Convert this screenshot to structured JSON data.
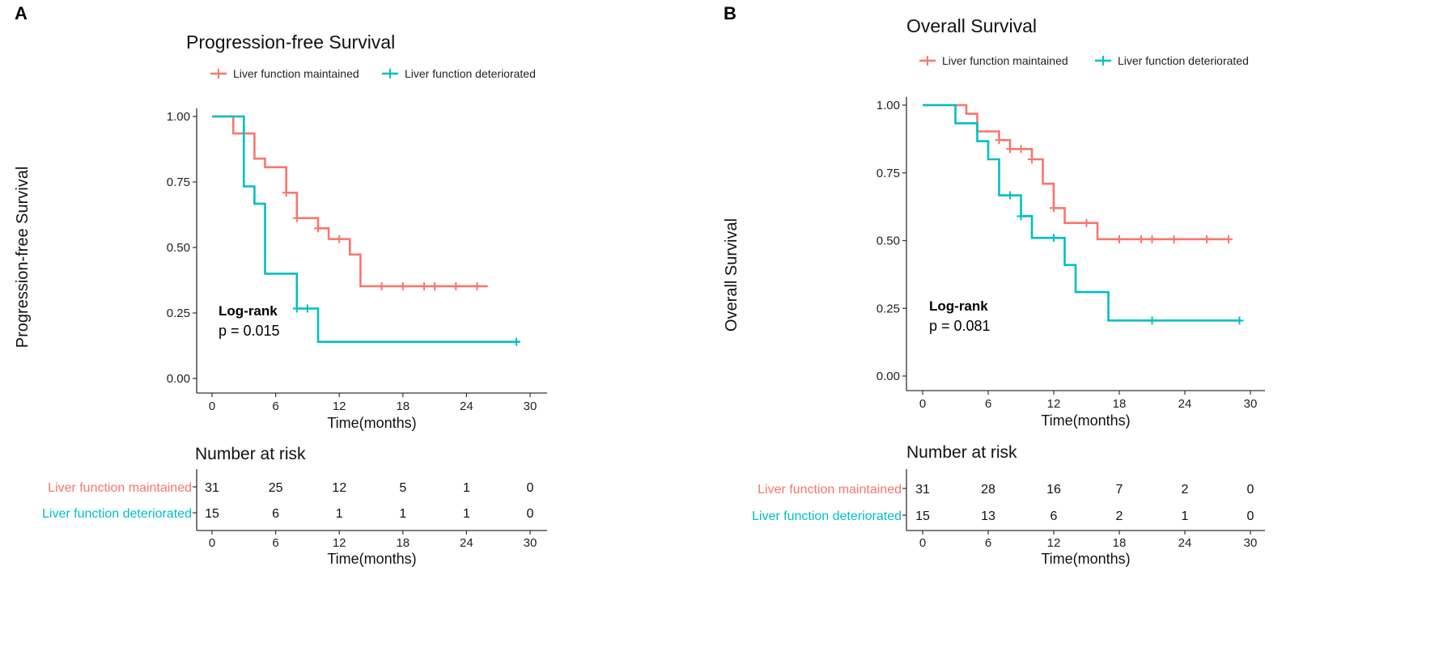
{
  "colors": {
    "maintained": "#F8766D",
    "deteriorated": "#00BFC4",
    "axis": "#333333",
    "text": "#111111"
  },
  "chart_data": [
    {
      "panel_label": "A",
      "type": "line",
      "subtype": "kaplan-meier",
      "title": "Progression-free Survival",
      "xlabel": "Time(months)",
      "ylabel": "Progression-free Survival",
      "xlim": [
        0,
        30
      ],
      "ylim": [
        0,
        1
      ],
      "xticks": [
        0,
        6,
        12,
        18,
        24,
        30
      ],
      "yticks": [
        "0.00",
        "0.25",
        "0.50",
        "0.75",
        "1.00"
      ],
      "grid": false,
      "legend_position": "top",
      "annotation": {
        "title": "Log-rank",
        "text": "p = 0.015"
      },
      "series": [
        {
          "name": "Liver function maintained",
          "color_key": "maintained",
          "steps": [
            [
              0,
              1.0
            ],
            [
              2,
              0.935
            ],
            [
              4,
              0.839
            ],
            [
              5,
              0.806
            ],
            [
              7,
              0.709
            ],
            [
              8,
              0.612
            ],
            [
              10,
              0.573
            ],
            [
              11,
              0.532
            ],
            [
              13,
              0.473
            ],
            [
              14,
              0.352
            ],
            [
              26,
              0.352
            ]
          ],
          "censored": [
            [
              7,
              0.709
            ],
            [
              8,
              0.612
            ],
            [
              10,
              0.573
            ],
            [
              12,
              0.532
            ],
            [
              16,
              0.352
            ],
            [
              18,
              0.352
            ],
            [
              20,
              0.352
            ],
            [
              21,
              0.352
            ],
            [
              23,
              0.352
            ],
            [
              25,
              0.352
            ]
          ]
        },
        {
          "name": "Liver function deteriorated",
          "color_key": "deteriorated",
          "steps": [
            [
              0,
              1.0
            ],
            [
              3,
              0.733
            ],
            [
              4,
              0.667
            ],
            [
              5,
              0.4
            ],
            [
              8,
              0.267
            ],
            [
              10,
              0.14
            ],
            [
              29,
              0.14
            ]
          ],
          "censored": [
            [
              8,
              0.267
            ],
            [
              9,
              0.267
            ],
            [
              28.7,
              0.14
            ]
          ]
        }
      ],
      "risk_table": {
        "title": "Number at risk",
        "times": [
          0,
          6,
          12,
          18,
          24,
          30
        ],
        "rows": [
          {
            "name": "Liver function maintained",
            "color_key": "maintained",
            "values": [
              31,
              25,
              12,
              5,
              1,
              0
            ]
          },
          {
            "name": "Liver function deteriorated",
            "color_key": "deteriorated",
            "values": [
              15,
              6,
              1,
              1,
              1,
              0
            ]
          }
        ],
        "xlabel": "Time(months)"
      }
    },
    {
      "panel_label": "B",
      "type": "line",
      "subtype": "kaplan-meier",
      "title": "Overall Survival",
      "xlabel": "Time(months)",
      "ylabel": "Overall Survival",
      "xlim": [
        0,
        30
      ],
      "ylim": [
        0,
        1
      ],
      "xticks": [
        0,
        6,
        12,
        18,
        24,
        30
      ],
      "yticks": [
        "0.00",
        "0.25",
        "0.50",
        "0.75",
        "1.00"
      ],
      "grid": false,
      "legend_position": "top",
      "annotation": {
        "title": "Log-rank",
        "text": "p = 0.081"
      },
      "series": [
        {
          "name": "Liver function maintained",
          "color_key": "maintained",
          "steps": [
            [
              0,
              1.0
            ],
            [
              4,
              0.968
            ],
            [
              5,
              0.903
            ],
            [
              7,
              0.871
            ],
            [
              8,
              0.838
            ],
            [
              10,
              0.8
            ],
            [
              11,
              0.71
            ],
            [
              12,
              0.62
            ],
            [
              13,
              0.565
            ],
            [
              16,
              0.505
            ],
            [
              28,
              0.505
            ]
          ],
          "censored": [
            [
              7,
              0.871
            ],
            [
              8,
              0.838
            ],
            [
              9,
              0.838
            ],
            [
              10,
              0.8
            ],
            [
              12,
              0.62
            ],
            [
              15,
              0.565
            ],
            [
              18,
              0.505
            ],
            [
              20,
              0.505
            ],
            [
              21,
              0.505
            ],
            [
              23,
              0.505
            ],
            [
              26,
              0.505
            ],
            [
              28,
              0.505
            ]
          ]
        },
        {
          "name": "Liver function deteriorated",
          "color_key": "deteriorated",
          "steps": [
            [
              0,
              1.0
            ],
            [
              3,
              0.933
            ],
            [
              5,
              0.867
            ],
            [
              6,
              0.8
            ],
            [
              7,
              0.667
            ],
            [
              9,
              0.59
            ],
            [
              10,
              0.51
            ],
            [
              13,
              0.41
            ],
            [
              14,
              0.31
            ],
            [
              17,
              0.205
            ],
            [
              29,
              0.205
            ]
          ],
          "censored": [
            [
              8,
              0.667
            ],
            [
              9,
              0.59
            ],
            [
              12,
              0.51
            ],
            [
              21,
              0.205
            ],
            [
              29,
              0.205
            ]
          ]
        }
      ],
      "risk_table": {
        "title": "Number at risk",
        "times": [
          0,
          6,
          12,
          18,
          24,
          30
        ],
        "rows": [
          {
            "name": "Liver function maintained",
            "color_key": "maintained",
            "values": [
              31,
              28,
              16,
              7,
              2,
              0
            ]
          },
          {
            "name": "Liver function deteriorated",
            "color_key": "deteriorated",
            "values": [
              15,
              13,
              6,
              2,
              1,
              0
            ]
          }
        ],
        "xlabel": "Time(months)"
      }
    }
  ]
}
